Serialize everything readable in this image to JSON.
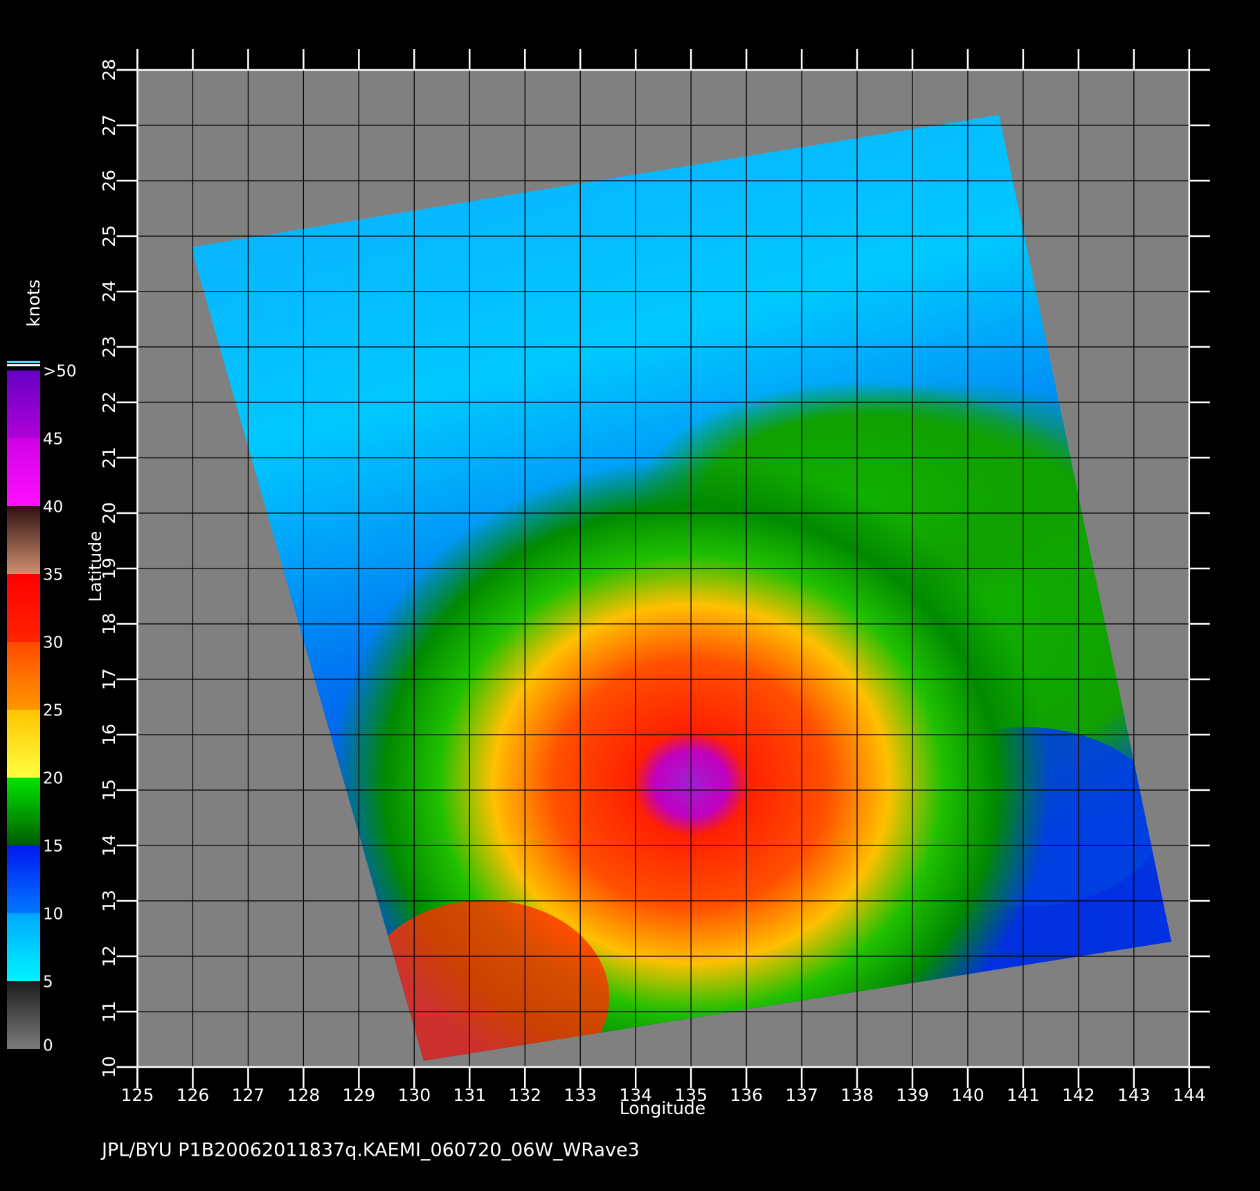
{
  "chart_data": {
    "type": "map",
    "xlabel": "Longitude",
    "ylabel": "Latitude",
    "xlim": [
      125,
      144
    ],
    "ylim": [
      10,
      28
    ],
    "xticks": [
      125,
      126,
      127,
      128,
      129,
      130,
      131,
      132,
      133,
      134,
      135,
      136,
      137,
      138,
      139,
      140,
      141,
      142,
      143,
      144
    ],
    "yticks": [
      10,
      11,
      12,
      13,
      14,
      15,
      16,
      17,
      18,
      19,
      20,
      21,
      22,
      23,
      24,
      25,
      26,
      27,
      28
    ],
    "grid": true,
    "colorbar": {
      "title": "knots",
      "lim": [
        0,
        50
      ],
      "ticks": [
        0,
        5,
        10,
        15,
        20,
        25,
        30,
        35,
        40,
        45,
        {
          "value": 50,
          "label": ">50"
        }
      ],
      "colors": [
        [
          "#7c7c7c",
          "#1c1c1c"
        ],
        [
          "#00f4ff",
          "#00a8ff"
        ],
        [
          "#0078ff",
          "#0018f0"
        ],
        [
          "#005c00",
          "#00e400"
        ],
        [
          "#ffff40",
          "#ffc400"
        ],
        [
          "#ff9800",
          "#ff4800"
        ],
        [
          "#ff2400",
          "#ff0000"
        ],
        [
          "#d09070",
          "#301010"
        ],
        [
          "#ff10ff",
          "#d000e8"
        ],
        [
          "#b000d8",
          "#6400c4"
        ]
      ]
    },
    "footer": "JPL/BYU  P1B20062011837q.KAEMI_060720_06W_WRave3"
  }
}
